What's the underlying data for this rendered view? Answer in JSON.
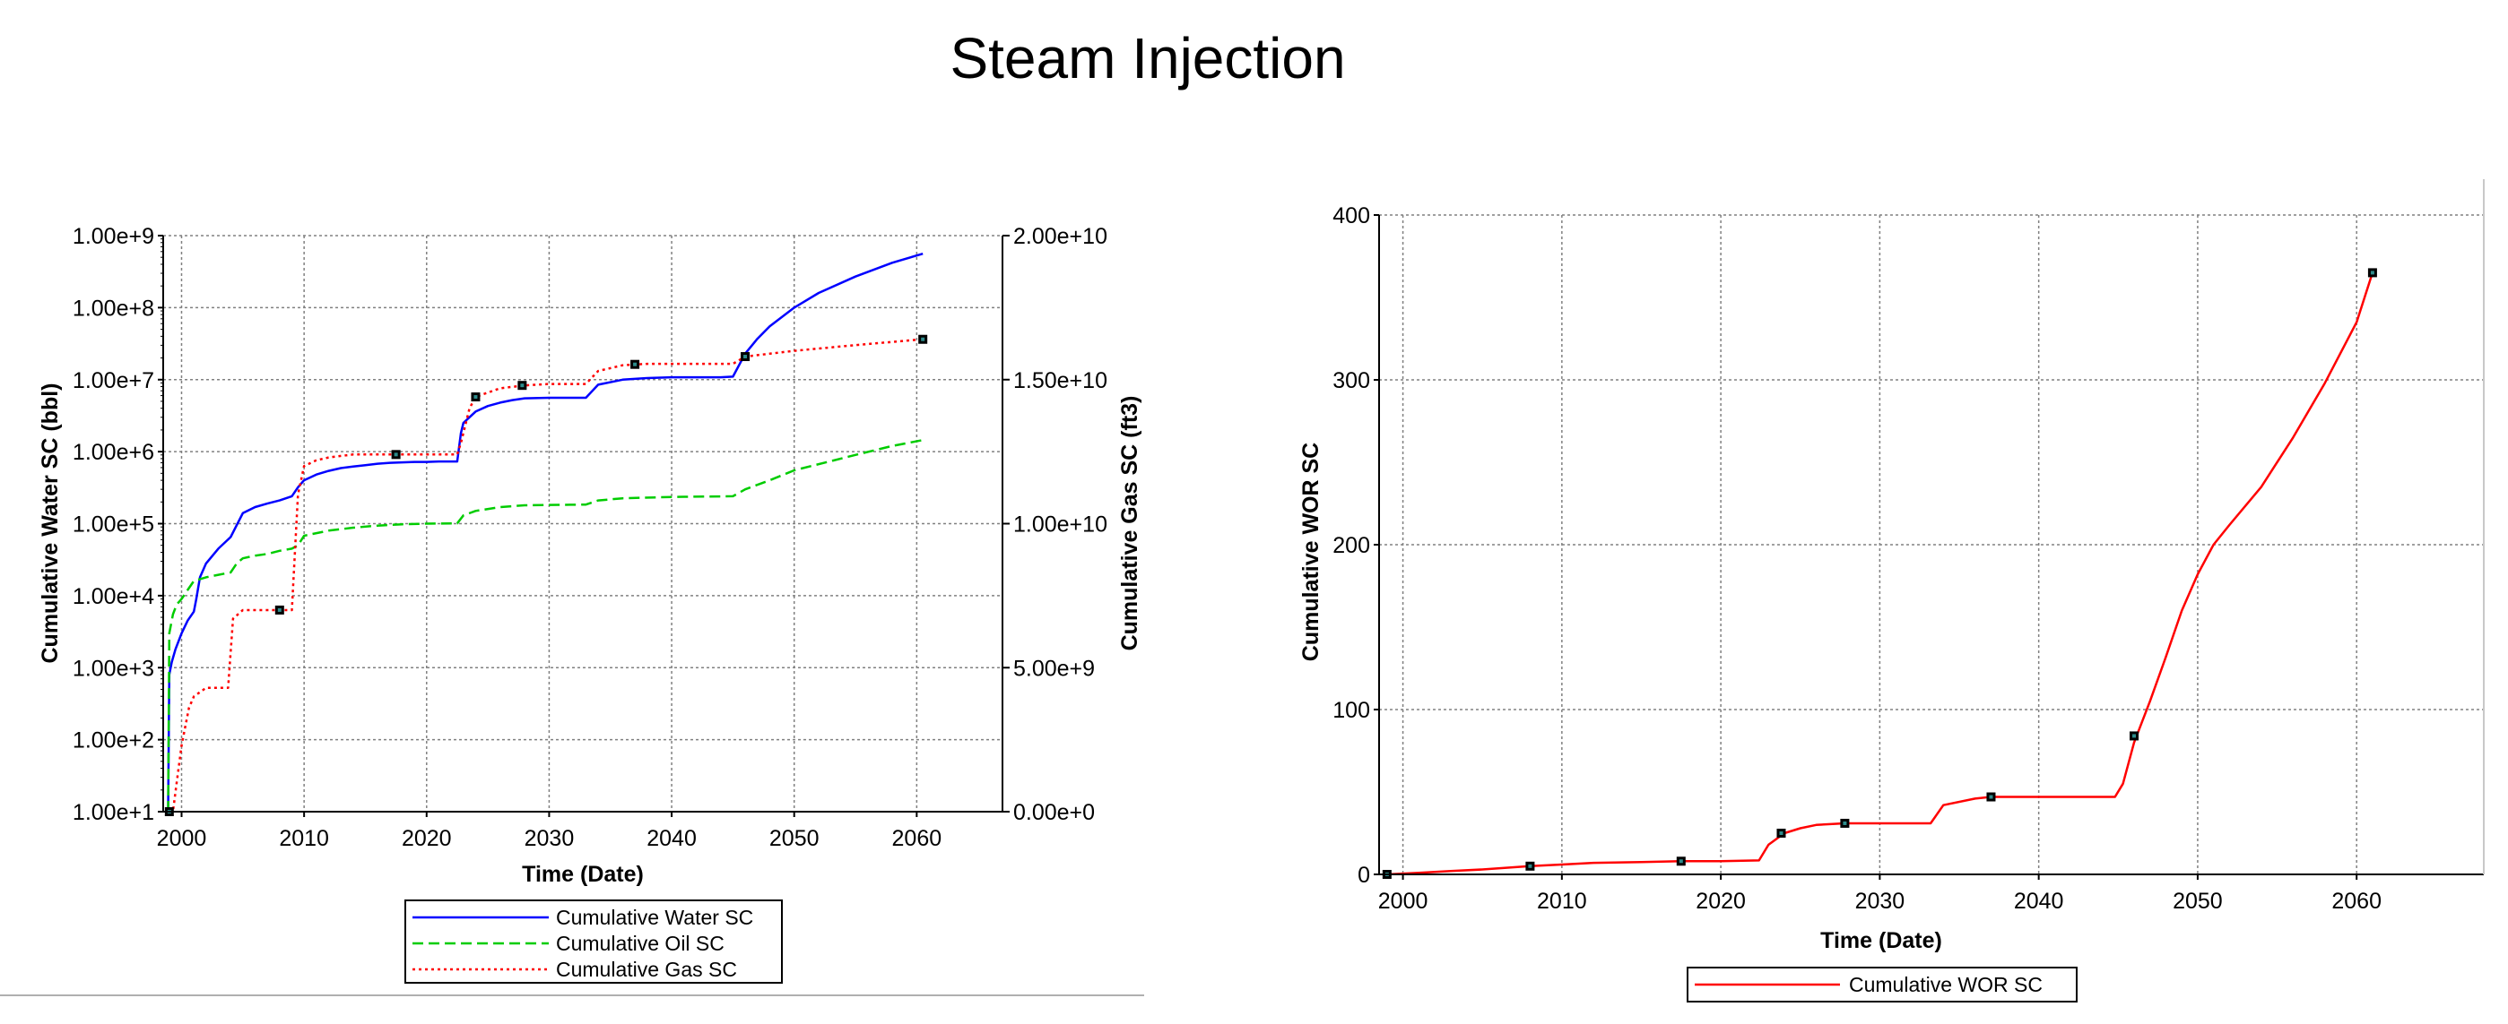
{
  "page": {
    "title": "Steam Injection"
  },
  "colors": {
    "water": "#0000ff",
    "oil": "#00cc00",
    "gas": "#ff0000",
    "wor": "#ff0000",
    "grid": "#808080",
    "marker": "#000000"
  },
  "chart_data": [
    {
      "type": "line",
      "xlabel": "Time (Date)",
      "ylabel": "Cumulative Water SC (bbl)",
      "y2label": "Cumulative Gas SC (ft3)",
      "xlim": [
        1998.5,
        2067
      ],
      "ylim": [
        10,
        1000000000
      ],
      "yscale": "log",
      "y2lim": [
        0,
        20000000000
      ],
      "grid": true,
      "legend_position": "bottom-center",
      "x_ticks": [
        "2000",
        "2010",
        "2020",
        "2030",
        "2040",
        "2050",
        "2060"
      ],
      "x_tick_values": [
        2000,
        2010,
        2020,
        2030,
        2040,
        2050,
        2060
      ],
      "y_ticks": [
        "1.00e+1",
        "1.00e+2",
        "1.00e+3",
        "1.00e+4",
        "1.00e+5",
        "1.00e+6",
        "1.00e+7",
        "1.00e+8",
        "1.00e+9"
      ],
      "y_tick_values": [
        10,
        100,
        1000,
        10000,
        100000,
        1000000,
        10000000,
        100000000,
        1000000000
      ],
      "y2_ticks": [
        "0.00e+0",
        "5.00e+9",
        "1.00e+10",
        "1.50e+10",
        "2.00e+10"
      ],
      "y2_tick_values": [
        0,
        5000000000,
        10000000000,
        15000000000,
        20000000000
      ],
      "legend": [
        "Cumulative Water SC",
        "Cumulative Oil SC",
        "Cumulative Gas SC"
      ],
      "series": [
        {
          "name": "Cumulative Water SC",
          "axis": "left",
          "style": "solid",
          "x": [
            1998.9,
            1999.0,
            1999.2,
            1999.5,
            2000,
            2000.5,
            2001,
            2001.2,
            2001.5,
            2002,
            2003,
            2004,
            2005,
            2006,
            2007,
            2008,
            2009,
            2009.5,
            2010,
            2011,
            2012,
            2013,
            2014,
            2015,
            2016,
            2017,
            2018,
            2019,
            2020,
            2021,
            2022,
            2022.5,
            2022.8,
            2023,
            2024,
            2025,
            2026,
            2027,
            2028,
            2030,
            2032,
            2033,
            2034,
            2036,
            2038,
            2040,
            2044,
            2045,
            2046,
            2047,
            2048,
            2050,
            2052,
            2055,
            2058,
            2060.5
          ],
          "y": [
            10,
            800,
            1200,
            1800,
            3000,
            4500,
            6000,
            9000,
            18000,
            28000,
            45000,
            65000,
            140000,
            170000,
            190000,
            210000,
            240000,
            320000,
            400000,
            480000,
            540000,
            590000,
            620000,
            650000,
            680000,
            700000,
            710000,
            720000,
            720000,
            730000,
            730000,
            730000,
            1800000,
            2500000,
            3600000,
            4300000,
            4800000,
            5200000,
            5500000,
            5600000,
            5600000,
            5600000,
            8500000,
            10000000,
            10500000,
            10800000,
            10800000,
            11000000,
            23000000,
            37000000,
            55000000,
            100000000,
            160000000,
            270000000,
            420000000,
            560000000
          ]
        },
        {
          "name": "Cumulative Oil SC",
          "axis": "left",
          "style": "dashed",
          "x": [
            1998.9,
            1999.0,
            1999.3,
            1999.6,
            2000,
            2000.5,
            2001,
            2002,
            2003,
            2004,
            2004.5,
            2005,
            2006,
            2007,
            2008,
            2009,
            2009.5,
            2010,
            2012,
            2014,
            2016,
            2018,
            2020,
            2022.5,
            2023,
            2024,
            2026,
            2028,
            2030,
            2032,
            2033,
            2034,
            2036,
            2040,
            2045,
            2046,
            2048,
            2050,
            2055,
            2058,
            2060.5
          ],
          "y": [
            10,
            3000,
            5500,
            7500,
            9000,
            12000,
            16000,
            18000,
            19500,
            21000,
            28000,
            33000,
            36000,
            38000,
            42000,
            45000,
            50000,
            68000,
            80000,
            88000,
            94000,
            98000,
            100000,
            101000,
            130000,
            150000,
            170000,
            180000,
            182000,
            183000,
            184000,
            210000,
            225000,
            235000,
            240000,
            300000,
            400000,
            550000,
            900000,
            1200000,
            1450000
          ]
        },
        {
          "name": "Cumulative Gas SC",
          "axis": "right",
          "style": "dotted",
          "x": [
            1999.0,
            1999.3,
            1999.6,
            2000,
            2000.6,
            2001,
            2002,
            2003,
            2003.8,
            2004.2,
            2005,
            2006,
            2008,
            2009,
            2009.5,
            2010,
            2011,
            2012,
            2014,
            2016,
            2018,
            2020,
            2022.5,
            2022.8,
            2023.5,
            2024,
            2026,
            2028,
            2030,
            2032,
            2033,
            2034,
            2036,
            2038,
            2040,
            2044,
            2045,
            2046,
            2050,
            2055,
            2060.5
          ],
          "y": [
            0,
            0,
            1000000000,
            2300000000,
            3600000000,
            4000000000,
            4300000000,
            4300000000,
            4300000000,
            6700000000,
            7000000000,
            7000000000,
            7000000000,
            7000000000,
            11000000000,
            12000000000,
            12200000000,
            12300000000,
            12400000000,
            12400000000,
            12400000000,
            12400000000,
            12400000000,
            12800000000,
            14000000000,
            14400000000,
            14700000000,
            14800000000,
            14850000000,
            14850000000,
            14850000000,
            15300000000,
            15500000000,
            15550000000,
            15550000000,
            15550000000,
            15550000000,
            15800000000,
            16000000000,
            16200000000,
            16400000000
          ]
        }
      ],
      "markers": [
        {
          "series": "Cumulative Gas SC",
          "axis": "right",
          "x": 2008,
          "y": 7000000000
        },
        {
          "series": "Cumulative Gas SC",
          "axis": "right",
          "x": 2017.5,
          "y": 12400000000
        },
        {
          "series": "Cumulative Gas SC",
          "axis": "right",
          "x": 2024,
          "y": 14400000000
        },
        {
          "series": "Cumulative Gas SC",
          "axis": "right",
          "x": 2027.8,
          "y": 14800000000
        },
        {
          "series": "Cumulative Gas SC",
          "axis": "right",
          "x": 2037,
          "y": 15530000000
        },
        {
          "series": "Cumulative Gas SC",
          "axis": "right",
          "x": 2046,
          "y": 15800000000
        },
        {
          "series": "Cumulative Gas SC",
          "axis": "right",
          "x": 2060.5,
          "y": 16400000000
        },
        {
          "series": "Cumulative Water SC",
          "axis": "left",
          "x": 1999,
          "y": 10
        }
      ]
    },
    {
      "type": "line",
      "xlabel": "Time (Date)",
      "ylabel": "Cumulative WOR SC",
      "xlim": [
        1998.5,
        2068
      ],
      "ylim": [
        0,
        400
      ],
      "grid": true,
      "legend_position": "bottom-center",
      "x_ticks": [
        "2000",
        "2010",
        "2020",
        "2030",
        "2040",
        "2050",
        "2060"
      ],
      "x_tick_values": [
        2000,
        2010,
        2020,
        2030,
        2040,
        2050,
        2060
      ],
      "y_ticks": [
        "0",
        "100",
        "200",
        "300",
        "400"
      ],
      "y_tick_values": [
        0,
        100,
        200,
        300,
        400
      ],
      "legend": [
        "Cumulative WOR SC"
      ],
      "series": [
        {
          "name": "Cumulative WOR SC",
          "axis": "left",
          "style": "solid",
          "x": [
            1999,
            2001,
            2003,
            2005,
            2008,
            2010,
            2012,
            2015,
            2017.5,
            2020,
            2022.4,
            2023,
            2024,
            2025,
            2026,
            2027.8,
            2030,
            2032,
            2033.2,
            2034,
            2036,
            2037,
            2040,
            2044.8,
            2045.3,
            2046,
            2047,
            2048,
            2049,
            2050,
            2051,
            2052,
            2054,
            2056,
            2058,
            2060,
            2061
          ],
          "y": [
            0,
            1,
            2,
            3,
            5,
            6,
            7,
            7.5,
            8,
            8,
            8.5,
            18,
            25,
            28,
            30,
            31,
            31,
            31,
            31,
            42,
            46,
            47,
            47,
            47,
            55,
            80,
            105,
            132,
            160,
            182,
            200,
            212,
            235,
            265,
            298,
            335,
            365
          ]
        }
      ],
      "markers": [
        {
          "series": "Cumulative WOR SC",
          "axis": "left",
          "x": 1999,
          "y": 0
        },
        {
          "series": "Cumulative WOR SC",
          "axis": "left",
          "x": 2008,
          "y": 5
        },
        {
          "series": "Cumulative WOR SC",
          "axis": "left",
          "x": 2017.5,
          "y": 8
        },
        {
          "series": "Cumulative WOR SC",
          "axis": "left",
          "x": 2023.8,
          "y": 25
        },
        {
          "series": "Cumulative WOR SC",
          "axis": "left",
          "x": 2027.8,
          "y": 31
        },
        {
          "series": "Cumulative WOR SC",
          "axis": "left",
          "x": 2037,
          "y": 47
        },
        {
          "series": "Cumulative WOR SC",
          "axis": "left",
          "x": 2046,
          "y": 84
        },
        {
          "series": "Cumulative WOR SC",
          "axis": "left",
          "x": 2061,
          "y": 365
        }
      ]
    }
  ]
}
